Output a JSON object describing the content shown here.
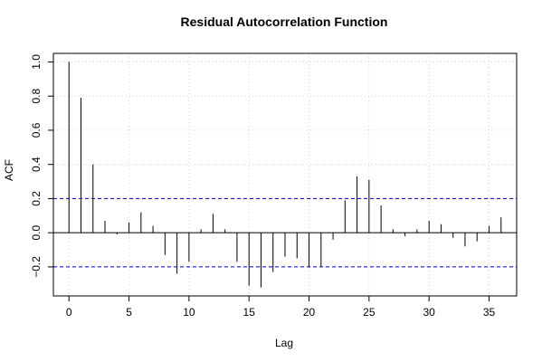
{
  "chart_data": {
    "type": "bar",
    "title": "Residual Autocorrelation Function",
    "xlabel": "Lag",
    "ylabel": "ACF",
    "x": [
      0,
      1,
      2,
      3,
      4,
      5,
      6,
      7,
      8,
      9,
      10,
      11,
      12,
      13,
      14,
      15,
      16,
      17,
      18,
      19,
      20,
      21,
      22,
      23,
      24,
      25,
      26,
      27,
      28,
      29,
      30,
      31,
      32,
      33,
      34,
      35,
      36
    ],
    "values": [
      1.0,
      0.79,
      0.4,
      0.07,
      -0.01,
      0.06,
      0.12,
      0.04,
      -0.13,
      -0.24,
      -0.17,
      0.02,
      0.11,
      0.02,
      -0.17,
      -0.31,
      -0.32,
      -0.23,
      -0.14,
      -0.15,
      -0.2,
      -0.2,
      -0.04,
      0.19,
      0.33,
      0.31,
      0.16,
      0.02,
      -0.02,
      0.02,
      0.07,
      0.05,
      -0.03,
      -0.08,
      -0.05,
      0.04,
      0.09
    ],
    "confidence_bounds": [
      0.2,
      -0.2
    ],
    "xlim": [
      -1.3,
      37.3
    ],
    "ylim": [
      -0.37,
      1.05
    ],
    "x_ticks": [
      0,
      5,
      10,
      15,
      20,
      25,
      30,
      35
    ],
    "y_ticks": [
      -0.2,
      0.0,
      0.2,
      0.4,
      0.6,
      0.8,
      1.0
    ],
    "y_tick_labels": [
      "−0.2",
      "0.0",
      "0.2",
      "0.4",
      "0.6",
      "0.8",
      "1.0"
    ],
    "grid": true,
    "colors": {
      "bars": "#000000",
      "bounds": "#0000cc",
      "grid": "#d3d3d3",
      "zero_line": "#000000"
    }
  }
}
